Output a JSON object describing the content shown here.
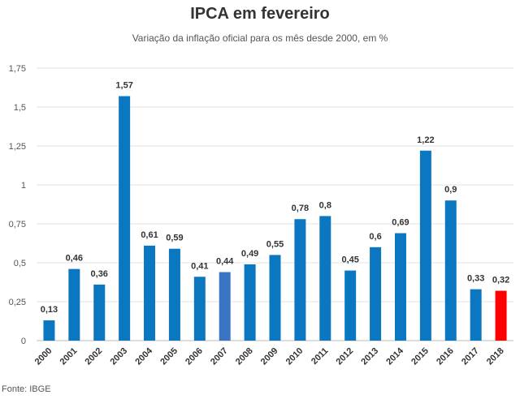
{
  "chart_data": {
    "type": "bar",
    "title": "IPCA em fevereiro",
    "subtitle": "Variação da inflação oficial para os mês desde 2000, em %",
    "categories": [
      "2000",
      "2001",
      "2002",
      "2003",
      "2004",
      "2005",
      "2006",
      "2007",
      "2008",
      "2009",
      "2010",
      "2011",
      "2012",
      "2013",
      "2014",
      "2015",
      "2016",
      "2017",
      "2018"
    ],
    "values": [
      0.13,
      0.46,
      0.36,
      1.57,
      0.61,
      0.59,
      0.41,
      0.44,
      0.49,
      0.55,
      0.78,
      0.8,
      0.45,
      0.6,
      0.69,
      1.22,
      0.9,
      0.33,
      0.32
    ],
    "data_labels": [
      "0,13",
      "0,46",
      "0,36",
      "1,57",
      "0,61",
      "0,59",
      "0,41",
      "0,44",
      "0,49",
      "0,55",
      "0,78",
      "0,8",
      "0,45",
      "0,6",
      "0,69",
      "1,22",
      "0,9",
      "0,33",
      "0,32"
    ],
    "ylim": [
      0,
      1.75
    ],
    "y_ticks": [
      0,
      0.25,
      0.5,
      0.75,
      1,
      1.25,
      1.5,
      1.75
    ],
    "y_tick_labels": [
      "0",
      "0,25",
      "0,5",
      "0,75",
      "1",
      "1,25",
      "1,5",
      "1,75"
    ],
    "grid": true,
    "colors": {
      "default": "#0a77c0",
      "highlight_2007": "#3a75c4",
      "highlight_2018": "#ff0000",
      "grid": "#e3e3e3"
    },
    "bar_colors": [
      "#0a77c0",
      "#0a77c0",
      "#0a77c0",
      "#0a77c0",
      "#0a77c0",
      "#0a77c0",
      "#0a77c0",
      "#3a75c4",
      "#0a77c0",
      "#0a77c0",
      "#0a77c0",
      "#0a77c0",
      "#0a77c0",
      "#0a77c0",
      "#0a77c0",
      "#0a77c0",
      "#0a77c0",
      "#0a77c0",
      "#ff0000"
    ]
  },
  "source": "Fonte: IBGE"
}
